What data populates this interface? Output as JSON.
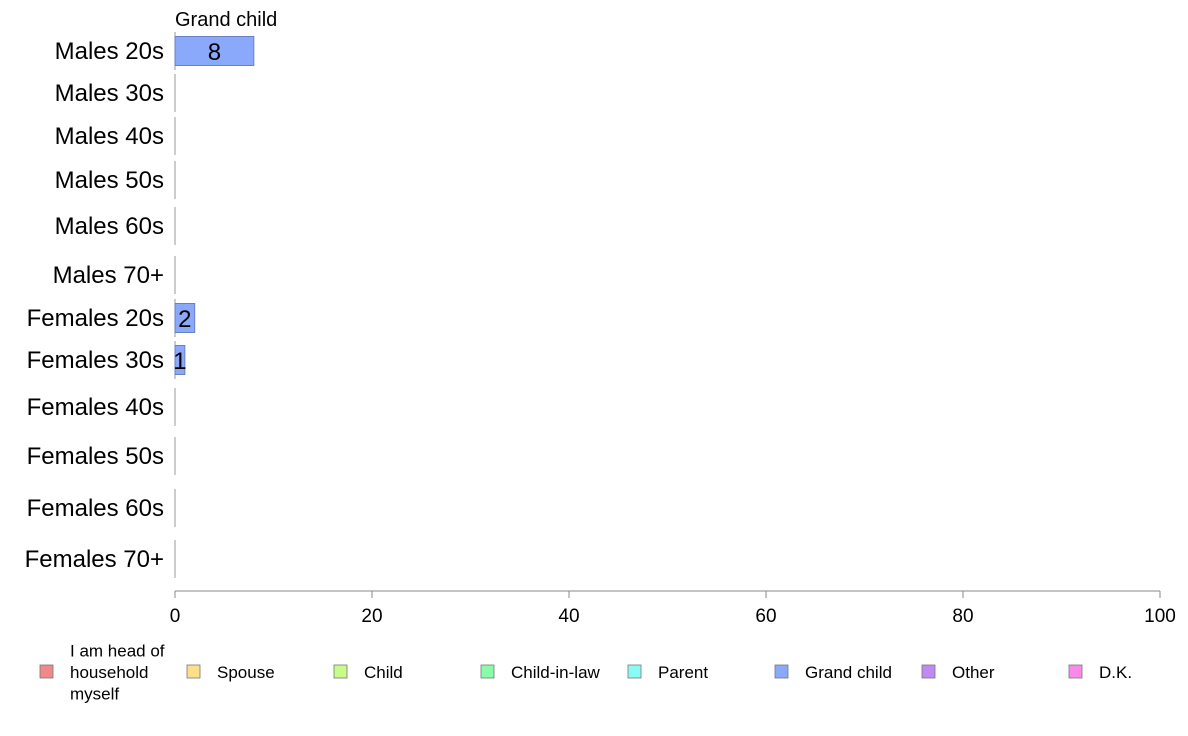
{
  "chart_data": {
    "type": "bar",
    "orientation": "horizontal",
    "series_title": "Grand child",
    "categories": [
      "Males 20s",
      "Males 30s",
      "Males 40s",
      "Males 50s",
      "Males 60s",
      "Males 70+",
      "Females 20s",
      "Females 30s",
      "Females 40s",
      "Females 50s",
      "Females 60s",
      "Females 70+"
    ],
    "series": [
      {
        "name": "Grand child",
        "color": "#8aa9fb",
        "values": [
          8,
          0,
          0,
          0,
          0,
          0,
          2,
          1,
          0,
          0,
          0,
          0
        ]
      }
    ],
    "data_labels": [
      "8",
      "",
      "",
      "",
      "",
      "",
      "2",
      "1",
      "",
      "",
      "",
      ""
    ],
    "xlim": [
      0,
      100
    ],
    "xticks": [
      0,
      20,
      40,
      60,
      80,
      100
    ],
    "xlabel": "",
    "ylabel": "",
    "grid": false,
    "legend_position": "bottom",
    "legend": [
      {
        "label": "I am head of household myself",
        "lines": [
          "I am head of",
          "household",
          "myself"
        ],
        "color": "#f08a8a"
      },
      {
        "label": "Spouse",
        "lines": [
          "Spouse"
        ],
        "color": "#fbe08a"
      },
      {
        "label": "Child",
        "lines": [
          "Child"
        ],
        "color": "#c8fb8a"
      },
      {
        "label": "Child-in-law",
        "lines": [
          "Child-in-law"
        ],
        "color": "#8afba9"
      },
      {
        "label": "Parent",
        "lines": [
          "Parent"
        ],
        "color": "#8afbf4"
      },
      {
        "label": "Grand child",
        "lines": [
          "Grand child"
        ],
        "color": "#8aa9fb"
      },
      {
        "label": "Other",
        "lines": [
          "Other"
        ],
        "color": "#c08af2"
      },
      {
        "label": "D.K.",
        "lines": [
          "D.K."
        ],
        "color": "#f98ae8"
      }
    ]
  }
}
